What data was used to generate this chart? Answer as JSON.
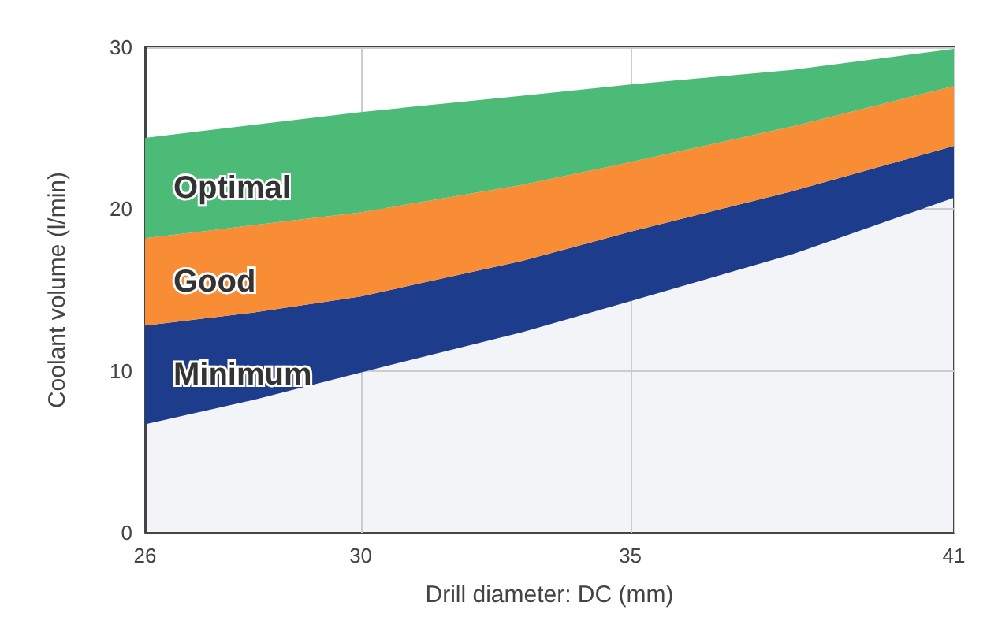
{
  "chart_data": {
    "type": "area",
    "stacked": true,
    "xlabel": "Drill diameter: DC (mm)",
    "ylabel": "Coolant volume (l/min)",
    "x": [
      26,
      28,
      30,
      33,
      35,
      38,
      41
    ],
    "series": [
      {
        "color": "#f2f4f8",
        "values": [
          6.7,
          8.2,
          9.9,
          12.4,
          14.3,
          17.2,
          20.7
        ]
      },
      {
        "name": "Minimum",
        "color": "#1e3c8c",
        "values": [
          6.1,
          5.4,
          4.7,
          4.4,
          4.3,
          3.9,
          3.2
        ]
      },
      {
        "name": "Good",
        "color": "#f98d35",
        "values": [
          5.4,
          5.4,
          5.2,
          4.7,
          4.3,
          4.0,
          3.7
        ]
      },
      {
        "name": "Optimal",
        "color": "#4cbb77",
        "values": [
          6.2,
          6.2,
          6.2,
          5.5,
          4.8,
          3.5,
          2.3
        ]
      }
    ],
    "xlim": [
      26,
      41
    ],
    "xticks": [
      26,
      30,
      35,
      41
    ],
    "ylim": [
      0,
      30
    ],
    "yticks": [
      0,
      10,
      20,
      30
    ],
    "grid": true
  }
}
